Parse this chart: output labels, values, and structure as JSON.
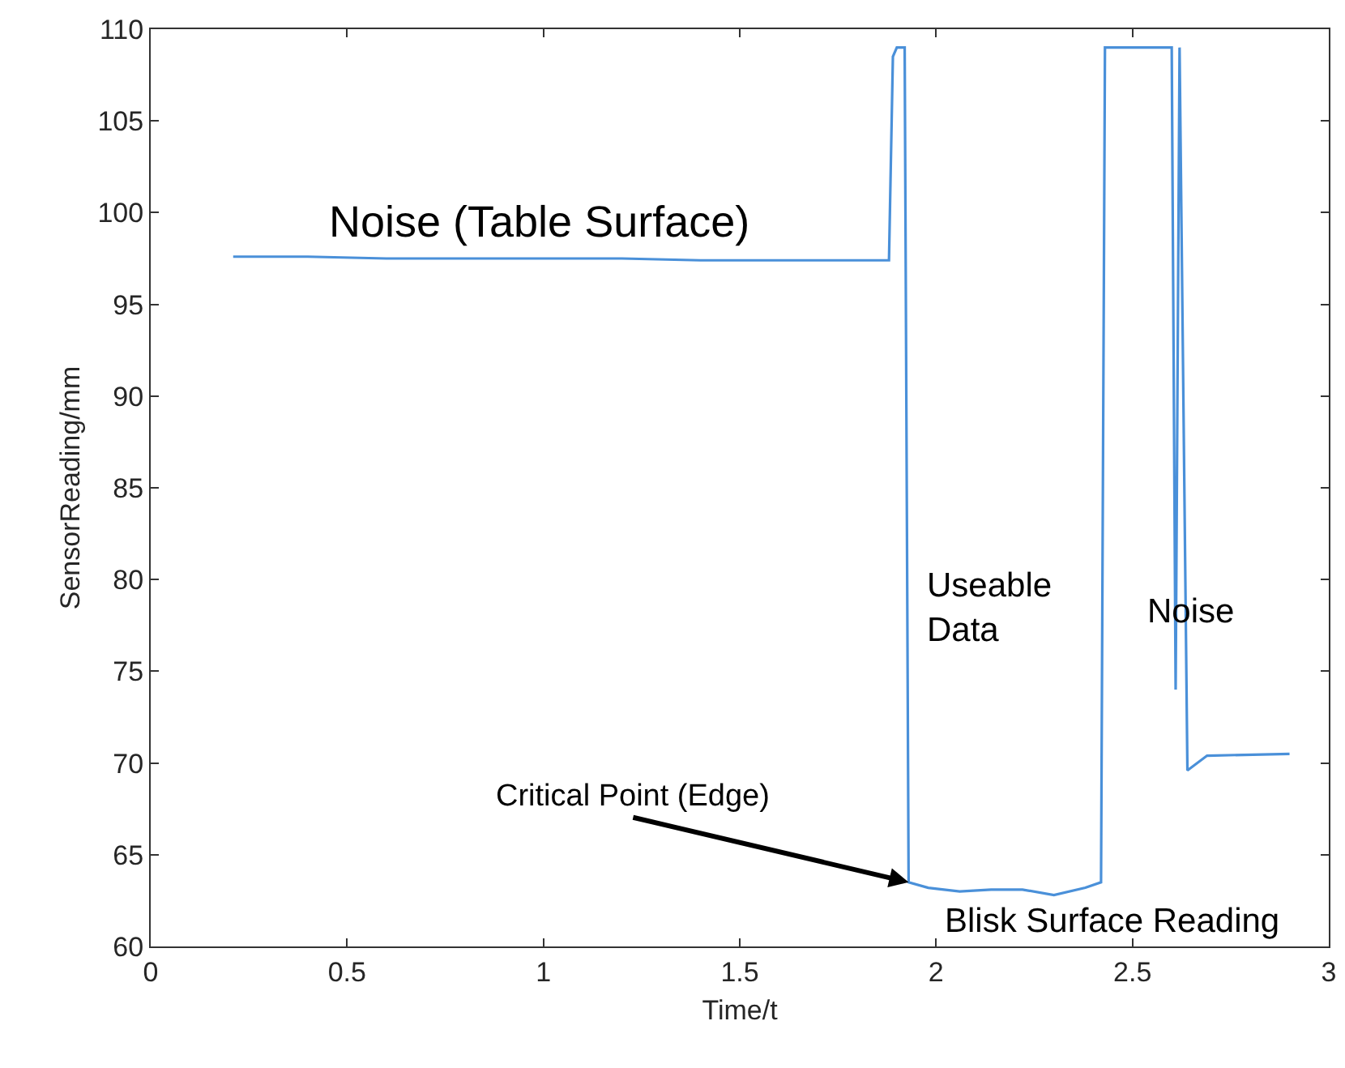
{
  "chart_data": {
    "type": "line",
    "xlabel": "Time/t",
    "ylabel": "SensorReading/mm",
    "xlim": [
      0,
      3
    ],
    "xticks": [
      0,
      0.5,
      1,
      1.5,
      2,
      2.5,
      3
    ],
    "ylim": [
      60,
      110
    ],
    "yticks": [
      60,
      65,
      70,
      75,
      80,
      85,
      90,
      95,
      100,
      105,
      110
    ],
    "marker": "none",
    "line_style": "solid",
    "series": [
      {
        "color": "#4a90d9",
        "x": [
          0.21,
          0.4,
          0.6,
          0.8,
          1.0,
          1.2,
          1.4,
          1.6,
          1.8,
          1.88,
          1.89,
          1.9,
          1.92,
          1.93,
          1.98,
          2.06,
          2.14,
          2.22,
          2.3,
          2.38,
          2.42,
          2.43,
          2.6,
          2.61,
          2.62,
          2.64,
          2.69,
          2.9
        ],
        "values": [
          97.6,
          97.6,
          97.5,
          97.5,
          97.5,
          97.5,
          97.4,
          97.4,
          97.4,
          97.4,
          108.5,
          109,
          109,
          63.5,
          63.2,
          63,
          63.1,
          63.1,
          62.8,
          63.2,
          63.5,
          109,
          109,
          74,
          109,
          69.6,
          70.4,
          70.5
        ]
      }
    ],
    "annotations": [
      "Noise (Table Surface)",
      "Useable\nData",
      "Noise",
      {
        "text": "Critical Point (Edge)",
        "x": 1.93,
        "y": 63.5
      },
      "Blisk Surface Reading"
    ]
  }
}
